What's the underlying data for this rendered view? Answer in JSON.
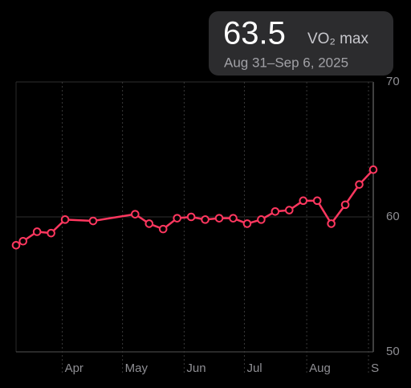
{
  "chart_data": {
    "type": "line",
    "x": [
      -0.5,
      0,
      1,
      2,
      3,
      5,
      8,
      9,
      10,
      11,
      12,
      13,
      14,
      15,
      16,
      17,
      18,
      19,
      20,
      21,
      22,
      23,
      24,
      25
    ],
    "series": [
      {
        "color": "#ff375f",
        "values": [
          57.9,
          58.2,
          58.9,
          58.8,
          59.8,
          59.7,
          60.2,
          59.5,
          59.1,
          59.9,
          60.0,
          59.8,
          59.9,
          59.9,
          59.5,
          59.8,
          60.4,
          60.5,
          61.2,
          61.2,
          59.5,
          60.9,
          62.4,
          63.5
        ]
      }
    ],
    "xlim": [
      -0.5,
      25
    ],
    "xticks": [
      {
        "value": 2.8,
        "label": "Apr"
      },
      {
        "value": 7.1,
        "label": "May"
      },
      {
        "value": 11.5,
        "label": "Jun"
      },
      {
        "value": 15.8,
        "label": "Jul"
      },
      {
        "value": 20.25,
        "label": "Aug"
      },
      {
        "value": 24.66,
        "label": "S"
      }
    ],
    "ylim": [
      50,
      70
    ],
    "yticks": [
      50,
      60,
      70
    ],
    "grid": true,
    "annotation": {
      "value": 63.5,
      "label": "VO₂ max",
      "date": "Aug 31–Sep 6, 2025"
    }
  }
}
